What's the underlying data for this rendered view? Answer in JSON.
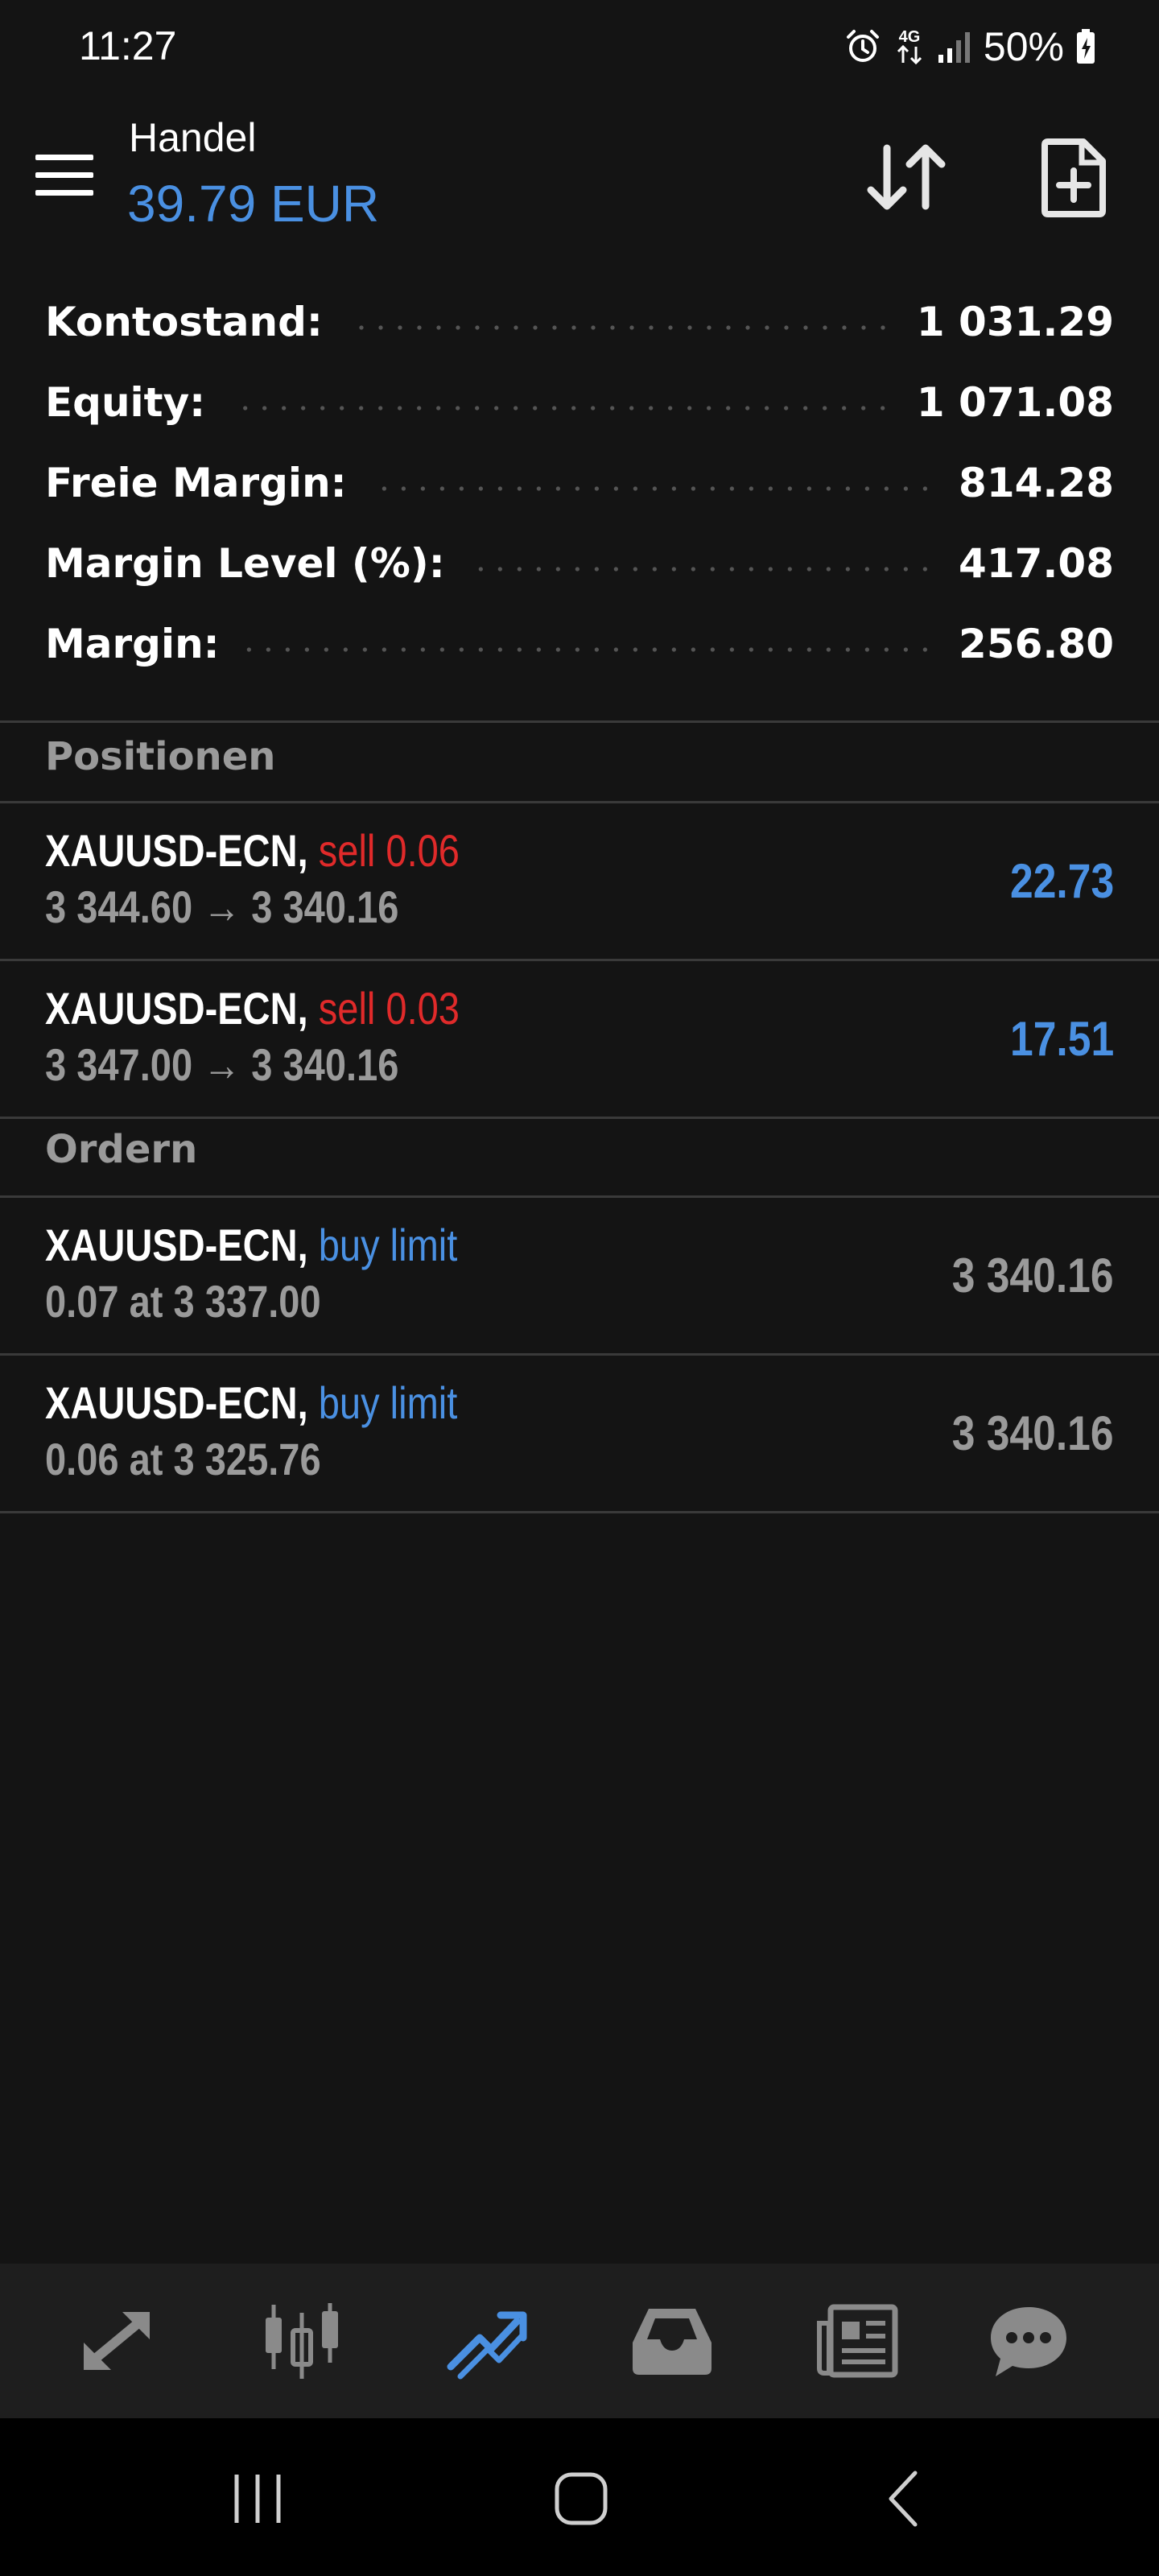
{
  "status_bar": {
    "time": "11:27",
    "network": "4G",
    "battery": "50%"
  },
  "header": {
    "title": "Handel",
    "subtitle": "39.79 EUR",
    "subtitle_color": "#4a90e2",
    "sort_icon": "sort-arrows-icon",
    "new_order_icon": "new-document-icon"
  },
  "summary": [
    {
      "label": "Kontostand:",
      "value": "1 031.29"
    },
    {
      "label": "Equity:",
      "value": "1 071.08"
    },
    {
      "label": "Freie Margin:",
      "value": "814.28"
    },
    {
      "label": "Margin Level (%):",
      "value": "417.08"
    },
    {
      "label": "Margin:",
      "value": "256.80"
    }
  ],
  "positions": {
    "header": "Positionen",
    "items": [
      {
        "symbol": "XAUUSD-ECN,",
        "type": "sell 0.06",
        "prices": "3 344.60 → 3 340.16",
        "value": "22.73"
      },
      {
        "symbol": "XAUUSD-ECN,",
        "type": "sell 0.03",
        "prices": "3 347.00 → 3 340.16",
        "value": "17.51"
      }
    ]
  },
  "orders": {
    "header": "Ordern",
    "items": [
      {
        "symbol": "XAUUSD-ECN,",
        "type": "buy limit",
        "detail": "0.07 at 3 337.00",
        "value": "3 340.16"
      },
      {
        "symbol": "XAUUSD-ECN,",
        "type": "buy limit",
        "detail": "0.06 at 3 325.76",
        "value": "3 340.16"
      }
    ]
  },
  "colors": {
    "sell": "#e02a2a",
    "buy": "#4a90e2",
    "profit": "#4a90e2",
    "muted": "#9a9a9a",
    "active_tab": "#4a90e2",
    "inactive_tab": "#8a8a8a"
  },
  "tabs": [
    {
      "icon": "quotes-arrows-icon",
      "active": false
    },
    {
      "icon": "chart-candles-icon",
      "active": false
    },
    {
      "icon": "trade-icon",
      "active": true
    },
    {
      "icon": "history-inbox-icon",
      "active": false
    },
    {
      "icon": "news-icon",
      "active": false
    },
    {
      "icon": "chat-icon",
      "active": false
    }
  ],
  "system_nav": [
    "recent-apps-icon",
    "home-icon",
    "back-icon"
  ]
}
